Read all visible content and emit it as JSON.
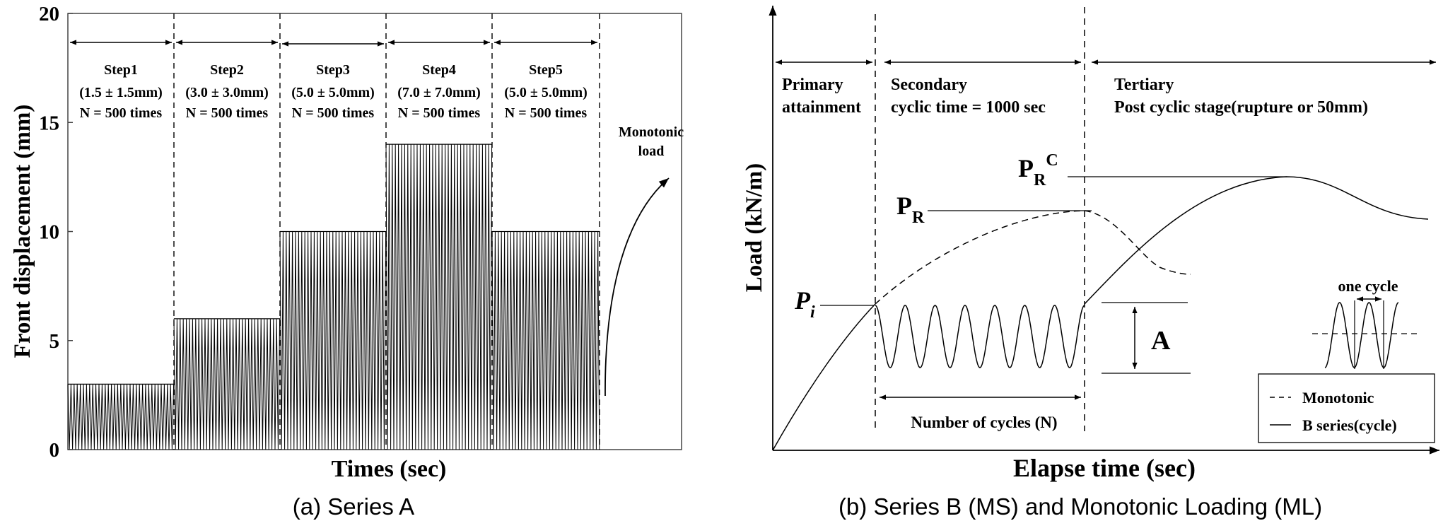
{
  "chart_data": [
    {
      "type": "line",
      "panel": "a",
      "caption": "(a) Series A",
      "xlabel": "Times (sec)",
      "ylabel": "Front displacement (mm)",
      "ylim": [
        0,
        20
      ],
      "yticks": [
        "0",
        "5",
        "10",
        "15",
        "20"
      ],
      "steps": [
        {
          "name": "Step1",
          "range": "(1.5 ± 1.5mm)",
          "count": "N = 500 times",
          "center": 1.5,
          "amplitude": 1.5
        },
        {
          "name": "Step2",
          "range": "(3.0 ± 3.0mm)",
          "count": "N = 500 times",
          "center": 3.0,
          "amplitude": 3.0
        },
        {
          "name": "Step3",
          "range": "(5.0 ± 5.0mm)",
          "count": "N = 500 times",
          "center": 5.0,
          "amplitude": 5.0
        },
        {
          "name": "Step4",
          "range": "(7.0 ± 7.0mm)",
          "count": "N = 500 times",
          "center": 7.0,
          "amplitude": 7.0
        },
        {
          "name": "Step5",
          "range": "(5.0 ± 5.0mm)",
          "count": "N = 500 times",
          "center": 5.0,
          "amplitude": 5.0
        }
      ],
      "monotonic_label": [
        "Monotonic",
        "load"
      ]
    },
    {
      "type": "line",
      "panel": "b",
      "caption": "(b) Series B (MS) and Monotonic Loading (ML)",
      "xlabel": "Elapse time (sec)",
      "ylabel": "Load (kN/m)",
      "stages": [
        {
          "lines": [
            "Primary",
            "attainment"
          ]
        },
        {
          "lines": [
            "Secondary",
            "cyclic time = 1000 sec"
          ]
        },
        {
          "lines": [
            "Tertiary",
            "Post cyclic stage(rupture or 50mm)"
          ]
        }
      ],
      "points": {
        "Pi": {
          "base": "P",
          "sub": "i"
        },
        "PR": {
          "base": "P",
          "sub": "R"
        },
        "PRC": {
          "base": "P",
          "sub": "R",
          "sup": "C"
        }
      },
      "amplitude_label": "A",
      "cycles_label": "Number of cycles (N)",
      "one_cycle_label": "one cycle",
      "legend": [
        {
          "name": "Monotonic",
          "style": "dashed"
        },
        {
          "name": "B series(cycle)",
          "style": "solid"
        }
      ]
    }
  ]
}
